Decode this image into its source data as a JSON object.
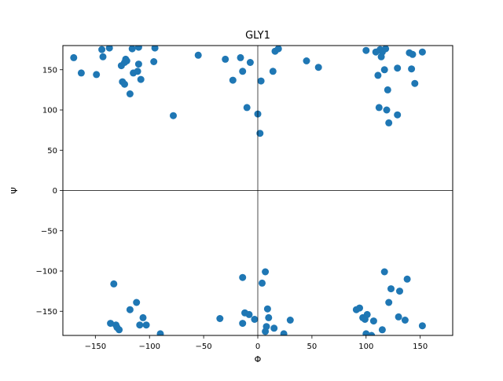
{
  "chart_data": {
    "type": "scatter",
    "title": "GLY1",
    "xlabel": "Φ",
    "ylabel": "Ψ",
    "xlim": [
      -180,
      180
    ],
    "ylim": [
      -180,
      180
    ],
    "x_ticks": [
      -150,
      -100,
      -50,
      0,
      50,
      100,
      150
    ],
    "y_ticks": [
      -150,
      -100,
      -50,
      0,
      50,
      100,
      150
    ],
    "grid": false,
    "reference_lines": [
      {
        "axis": "x",
        "value": 0
      },
      {
        "axis": "y",
        "value": 0
      }
    ],
    "marker_color": "#1f77b4",
    "series": [
      {
        "points": [
          [
            -170,
            165
          ],
          [
            -163,
            146
          ],
          [
            -149,
            144
          ],
          [
            -144,
            175
          ],
          [
            -143,
            166
          ],
          [
            -137,
            177
          ],
          [
            -126,
            155
          ],
          [
            -125,
            135
          ],
          [
            -123,
            159
          ],
          [
            -123,
            132
          ],
          [
            -122,
            163
          ],
          [
            -121,
            161
          ],
          [
            -118,
            120
          ],
          [
            -116,
            176
          ],
          [
            -115,
            146
          ],
          [
            -111,
            148
          ],
          [
            -110,
            178
          ],
          [
            -110,
            157
          ],
          [
            -108,
            138
          ],
          [
            -96,
            160
          ],
          [
            -95,
            177
          ],
          [
            -78,
            93
          ],
          [
            -55,
            168
          ],
          [
            -30,
            163
          ],
          [
            -23,
            137
          ],
          [
            -16,
            165
          ],
          [
            -14,
            148
          ],
          [
            -10,
            103
          ],
          [
            -7,
            159
          ],
          [
            0,
            95
          ],
          [
            2,
            71
          ],
          [
            3,
            136
          ],
          [
            14,
            148
          ],
          [
            16,
            173
          ],
          [
            19,
            176
          ],
          [
            45,
            161
          ],
          [
            56,
            153
          ],
          [
            100,
            174
          ],
          [
            109,
            172
          ],
          [
            111,
            143
          ],
          [
            112,
            103
          ],
          [
            113,
            175
          ],
          [
            114,
            166
          ],
          [
            115,
            172
          ],
          [
            117,
            150
          ],
          [
            118,
            176
          ],
          [
            119,
            100
          ],
          [
            120,
            125
          ],
          [
            121,
            84
          ],
          [
            129,
            152
          ],
          [
            129,
            94
          ],
          [
            140,
            171
          ],
          [
            142,
            151
          ],
          [
            143,
            169
          ],
          [
            145,
            133
          ],
          [
            152,
            172
          ],
          [
            -133,
            -116
          ],
          [
            -136,
            -165
          ],
          [
            -131,
            -167
          ],
          [
            -128,
            -173
          ],
          [
            -130,
            -170
          ],
          [
            -118,
            -148
          ],
          [
            -112,
            -139
          ],
          [
            -109,
            -167
          ],
          [
            -106,
            -158
          ],
          [
            -103,
            -167
          ],
          [
            -90,
            -178
          ],
          [
            -35,
            -159
          ],
          [
            -14,
            -108
          ],
          [
            -14,
            -165
          ],
          [
            -12,
            -152
          ],
          [
            -8,
            -154
          ],
          [
            -3,
            -160
          ],
          [
            4,
            -115
          ],
          [
            7,
            -101
          ],
          [
            7,
            -175
          ],
          [
            8,
            -169
          ],
          [
            9,
            -147
          ],
          [
            10,
            -158
          ],
          [
            15,
            -171
          ],
          [
            24,
            -178
          ],
          [
            30,
            -161
          ],
          [
            91,
            -148
          ],
          [
            94,
            -146
          ],
          [
            97,
            -158
          ],
          [
            99,
            -160
          ],
          [
            100,
            -178
          ],
          [
            101,
            -154
          ],
          [
            105,
            -180
          ],
          [
            107,
            -162
          ],
          [
            115,
            -173
          ],
          [
            117,
            -101
          ],
          [
            121,
            -139
          ],
          [
            123,
            -122
          ],
          [
            130,
            -157
          ],
          [
            131,
            -125
          ],
          [
            136,
            -161
          ],
          [
            138,
            -110
          ],
          [
            152,
            -168
          ]
        ]
      }
    ]
  }
}
